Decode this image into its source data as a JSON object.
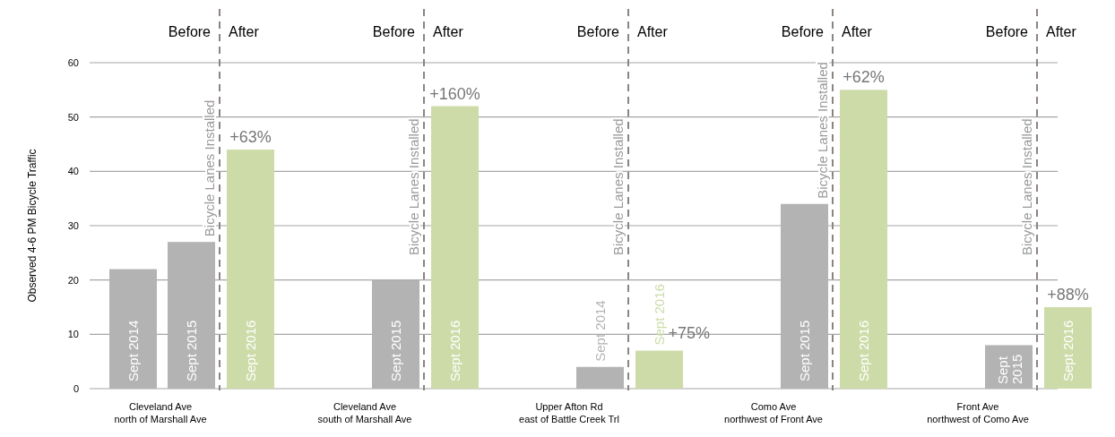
{
  "chart_data": {
    "type": "bar",
    "ylabel": "Observed 4-6 PM Bicycle Traffic",
    "categories": [
      "Cleveland Ave\nnorth of Marshall Ave",
      "Cleveland Ave\nsouth of Marshall Ave",
      "Upper Afton Rd\neast of Battle Creek Trl",
      "Como Ave\nnorthwest of Front Ave",
      "Front Ave\nnorthwest of Como Ave"
    ],
    "series": [
      {
        "name": "Sept 2014",
        "color": "#b3b3b3",
        "values": [
          22,
          null,
          4,
          null,
          null
        ]
      },
      {
        "name": "Sept 2015",
        "color": "#b3b3b3",
        "values": [
          27,
          20,
          null,
          34,
          8
        ]
      },
      {
        "name": "Sept 2016",
        "color": "#cddba8",
        "values": [
          44,
          52,
          7,
          55,
          15
        ]
      }
    ],
    "ylim": [
      0,
      60
    ],
    "yticks": [
      0,
      10,
      20,
      30,
      40,
      50,
      60
    ],
    "grid": "y",
    "ref_lines": [
      {
        "axis": "x",
        "value": "Cleveland Ave\nnorth of Marshall Ave",
        "label": "Bicycle Lanes Installed",
        "color": "#8c8480",
        "line_style": "dashed"
      },
      {
        "axis": "x",
        "value": "Cleveland Ave\nsouth of Marshall Ave",
        "label": "Bicycle Lanes Installed",
        "color": "#8c8480",
        "line_style": "dashed"
      },
      {
        "axis": "x",
        "value": "Upper Afton Rd\neast of Battle Creek Trl",
        "label": "Bicycle Lanes Installed",
        "color": "#8c8480",
        "line_style": "dashed"
      },
      {
        "axis": "x",
        "value": "Como Ave\nnorthwest of Front Ave",
        "label": "Bicycle Lanes Installed",
        "color": "#8c8480",
        "line_style": "dashed"
      },
      {
        "axis": "x",
        "value": "Front Ave\nnorthwest of Como Ave",
        "label": "Bicycle Lanes Installed",
        "color": "#8c8480",
        "line_style": "dashed"
      }
    ],
    "annotations": [
      "Before",
      "After",
      "Before",
      "After",
      "Before",
      "After",
      "Before",
      "After",
      "Before",
      "After",
      "+63%",
      "+160%",
      "+75%",
      "+62%",
      "+88%"
    ]
  }
}
